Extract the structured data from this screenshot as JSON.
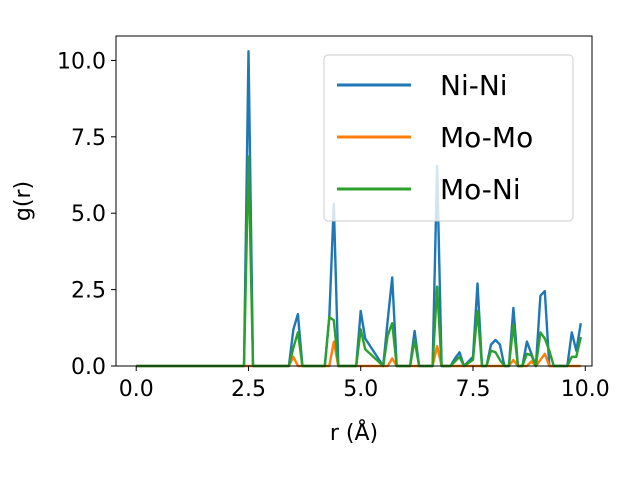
{
  "chart_data": {
    "type": "line",
    "xlabel": "r (Å)",
    "ylabel": "g(r)",
    "xlim": [
      -0.45,
      10.15
    ],
    "ylim": [
      0,
      10.8
    ],
    "xticks": [
      0.0,
      2.5,
      5.0,
      7.5,
      10.0
    ],
    "xtick_labels": [
      "0.0",
      "2.5",
      "5.0",
      "7.5",
      "10.0"
    ],
    "yticks": [
      0.0,
      2.5,
      5.0,
      7.5,
      10.0
    ],
    "ytick_labels": [
      "0.0",
      "2.5",
      "5.0",
      "7.5",
      "10.0"
    ],
    "grid": false,
    "legend_position": "top-right",
    "x": [
      0.0,
      2.3,
      2.4,
      2.5,
      2.6,
      2.7,
      3.3,
      3.4,
      3.5,
      3.6,
      3.7,
      4.2,
      4.3,
      4.4,
      4.5,
      4.9,
      5.0,
      5.1,
      5.5,
      5.6,
      5.7,
      5.8,
      6.1,
      6.2,
      6.3,
      6.6,
      6.7,
      6.8,
      7.0,
      7.1,
      7.2,
      7.3,
      7.5,
      7.6,
      7.7,
      7.8,
      7.9,
      8.0,
      8.1,
      8.2,
      8.3,
      8.4,
      8.5,
      8.6,
      8.7,
      8.8,
      8.9,
      9.0,
      9.1,
      9.2,
      9.3,
      9.4,
      9.5,
      9.6,
      9.7,
      9.8,
      9.9
    ],
    "series": [
      {
        "name": "Ni-Ni",
        "color": "#1f77b4",
        "values": [
          0,
          0,
          0,
          10.3,
          0,
          0,
          0,
          0,
          1.2,
          1.7,
          0,
          0,
          1.6,
          5.3,
          0,
          0,
          1.8,
          0.9,
          0,
          1.5,
          2.9,
          0,
          0,
          1.15,
          0,
          0,
          6.55,
          0,
          0,
          0.25,
          0.45,
          0,
          0.3,
          2.7,
          0,
          0,
          0.7,
          0.85,
          0.7,
          0,
          0,
          1.9,
          0,
          0,
          0.8,
          0.4,
          0,
          2.3,
          2.45,
          0,
          0,
          0,
          0,
          0,
          1.1,
          0.5,
          1.4
        ]
      },
      {
        "name": "Mo-Mo",
        "color": "#ff7f0e",
        "values": [
          0,
          0,
          0,
          0,
          0,
          0,
          0,
          0,
          0.3,
          0,
          0,
          0,
          0,
          0.8,
          0,
          0,
          0,
          0,
          0,
          0,
          0.25,
          0,
          0,
          0,
          0,
          0,
          0.65,
          0,
          0,
          0,
          0,
          0,
          0,
          0,
          0,
          0,
          0,
          0,
          0,
          0,
          0,
          0.2,
          0,
          0,
          0,
          0.15,
          0,
          0.2,
          0.4,
          0,
          0,
          0,
          0,
          0,
          0,
          0,
          0
        ]
      },
      {
        "name": "Mo-Ni",
        "color": "#2ca02c",
        "values": [
          0,
          0,
          0,
          6.85,
          0,
          0,
          0,
          0,
          0.6,
          1.1,
          0,
          0,
          1.6,
          1.5,
          0,
          0,
          1.2,
          0.55,
          0,
          1.0,
          1.4,
          0,
          0,
          0.85,
          0,
          0,
          2.6,
          0,
          0,
          0.15,
          0.3,
          0,
          0.2,
          1.8,
          0,
          0,
          0.5,
          0.45,
          0.2,
          0,
          0,
          1.35,
          0,
          0,
          0.4,
          0.35,
          0,
          1.1,
          0.9,
          0.5,
          0,
          0,
          0,
          0,
          0.3,
          0.3,
          0.95
        ]
      }
    ]
  }
}
